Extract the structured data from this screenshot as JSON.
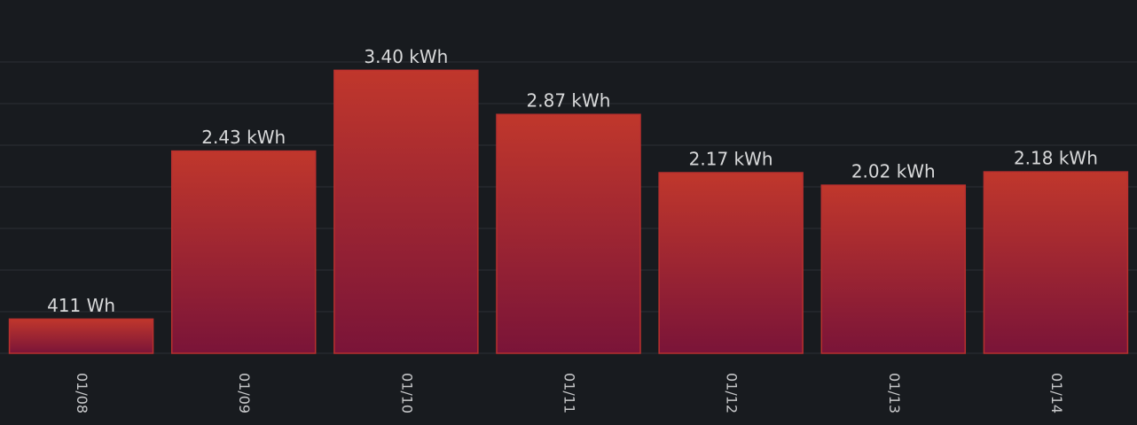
{
  "chart_data": {
    "type": "bar",
    "categories": [
      "01/08",
      "01/09",
      "01/10",
      "01/11",
      "01/12",
      "01/13",
      "01/14"
    ],
    "values": [
      0.411,
      2.43,
      3.4,
      2.87,
      2.17,
      2.02,
      2.18
    ],
    "value_labels": [
      "411 Wh",
      "2.43 kWh",
      "3.40 kWh",
      "2.87 kWh",
      "2.17 kWh",
      "2.02 kWh",
      "2.18 kWh"
    ],
    "color": "#b8302e",
    "ylim": [
      0,
      3.5
    ],
    "yticks": [
      0,
      0.5,
      1,
      1.5,
      2,
      2.5,
      3,
      3.5
    ],
    "grid": true
  }
}
